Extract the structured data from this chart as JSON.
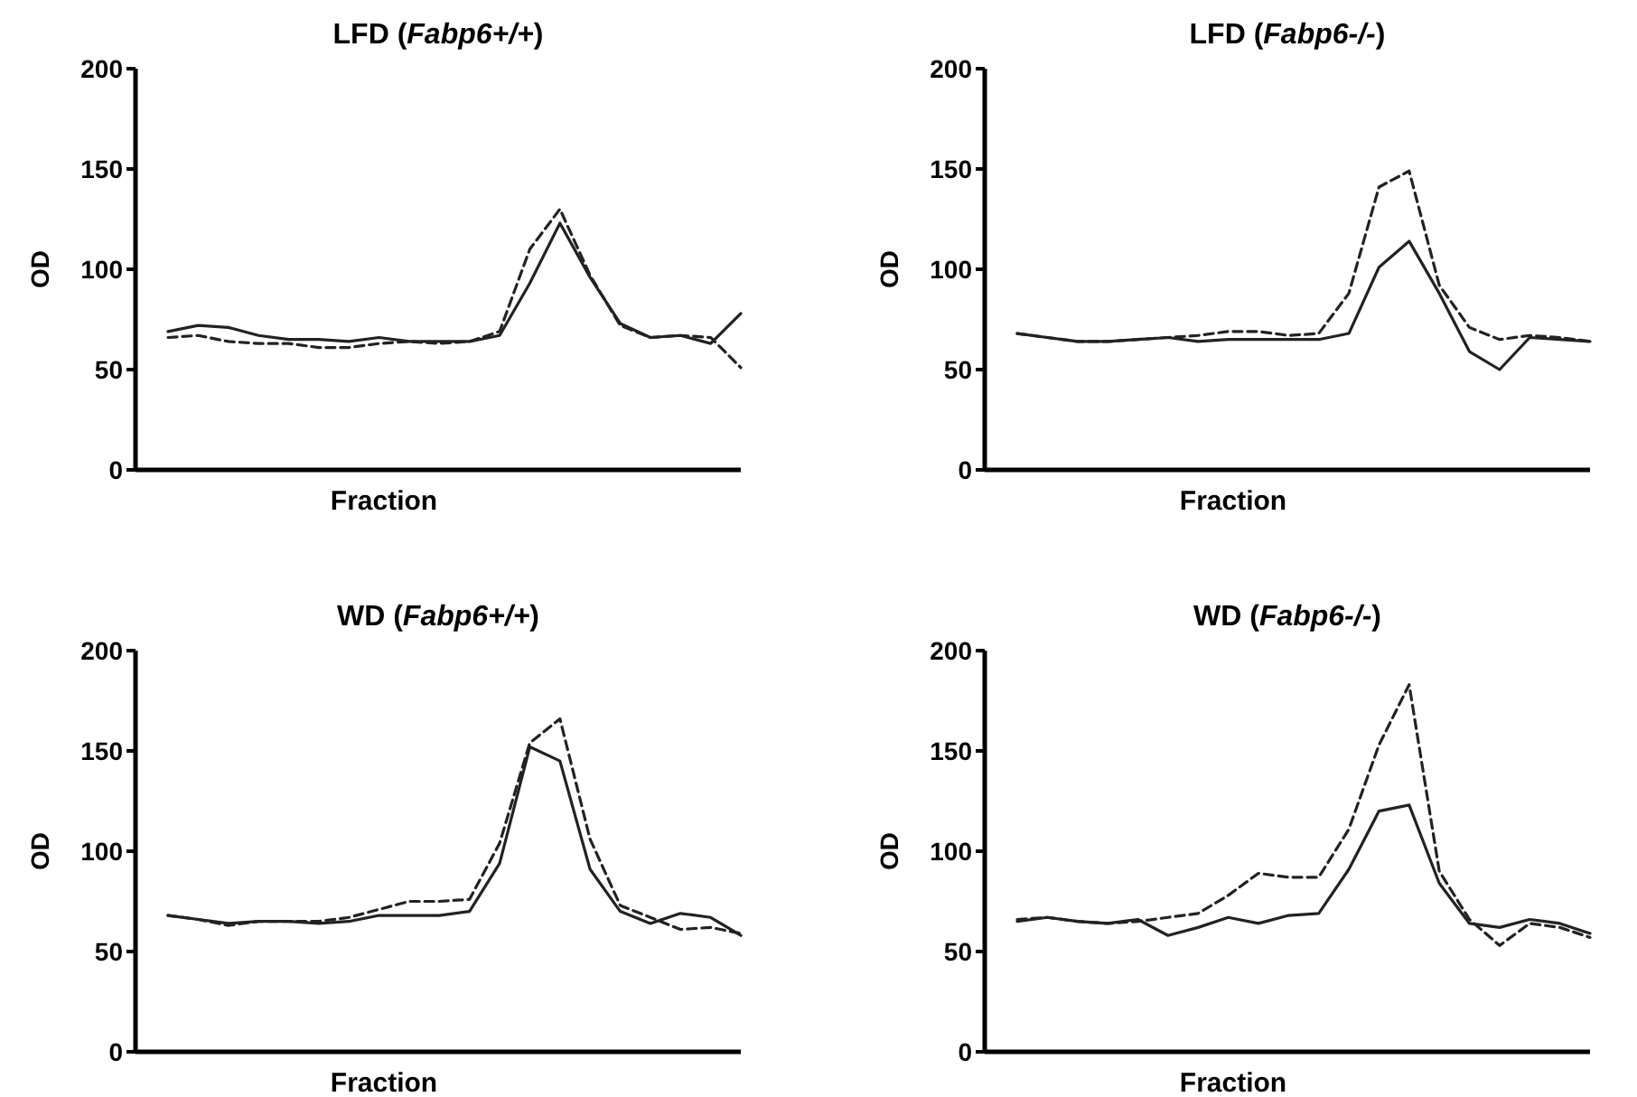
{
  "chart_data": [
    {
      "type": "line",
      "title": "LFD (Fabp6+/+)",
      "xlabel": "Fraction",
      "ylabel": "OD",
      "categories": [
        null,
        null,
        null,
        null,
        null,
        null,
        null,
        null,
        null,
        null,
        null,
        null,
        null,
        null,
        null,
        null,
        null,
        null,
        null,
        null
      ],
      "ylim": [
        0,
        200
      ],
      "yticks": [
        0,
        50,
        100,
        150,
        200
      ],
      "tick_labels": "y",
      "marker": "none",
      "series": [
        {
          "color": "#222222",
          "line_style": "solid",
          "values": [
            69,
            72,
            71,
            67,
            65,
            65,
            64,
            66,
            64,
            64,
            64,
            67,
            93,
            123,
            96,
            73,
            66,
            67,
            63,
            78
          ]
        },
        {
          "color": "#222222",
          "line_style": "dashed",
          "values": [
            66,
            67,
            64,
            63,
            63,
            61,
            61,
            63,
            64,
            63,
            64,
            69,
            110,
            130,
            97,
            72,
            66,
            67,
            66,
            51
          ]
        }
      ]
    },
    {
      "type": "line",
      "title": "LFD (Fabp6-/-)",
      "xlabel": "Fraction",
      "ylabel": "OD",
      "categories": [
        null,
        null,
        null,
        null,
        null,
        null,
        null,
        null,
        null,
        null,
        null,
        null,
        null,
        null,
        null,
        null,
        null,
        null,
        null,
        null
      ],
      "ylim": [
        0,
        200
      ],
      "yticks": [
        0,
        50,
        100,
        150,
        200
      ],
      "tick_labels": "y",
      "marker": "none",
      "series": [
        {
          "color": "#222222",
          "line_style": "solid",
          "values": [
            68,
            66,
            64,
            64,
            65,
            66,
            64,
            65,
            65,
            65,
            65,
            68,
            101,
            114,
            88,
            59,
            50,
            66,
            65,
            64
          ]
        },
        {
          "color": "#222222",
          "line_style": "dashed",
          "values": [
            68,
            66,
            64,
            64,
            65,
            66,
            67,
            69,
            69,
            67,
            68,
            88,
            141,
            149,
            92,
            71,
            65,
            67,
            66,
            64
          ]
        }
      ]
    },
    {
      "type": "line",
      "title": "WD (Fabp6+/+)",
      "xlabel": "Fraction",
      "ylabel": "OD",
      "categories": [
        null,
        null,
        null,
        null,
        null,
        null,
        null,
        null,
        null,
        null,
        null,
        null,
        null,
        null,
        null,
        null,
        null,
        null,
        null,
        null
      ],
      "ylim": [
        0,
        200
      ],
      "yticks": [
        0,
        50,
        100,
        150,
        200
      ],
      "tick_labels": "y",
      "marker": "none",
      "series": [
        {
          "color": "#222222",
          "line_style": "solid",
          "values": [
            68,
            66,
            64,
            65,
            65,
            64,
            65,
            68,
            68,
            68,
            70,
            94,
            152,
            145,
            91,
            70,
            64,
            69,
            67,
            58
          ]
        },
        {
          "color": "#222222",
          "line_style": "dashed",
          "values": [
            68,
            66,
            63,
            65,
            65,
            65,
            67,
            71,
            75,
            75,
            76,
            104,
            154,
            166,
            106,
            73,
            67,
            61,
            62,
            59
          ]
        }
      ]
    },
    {
      "type": "line",
      "title": "WD (Fabp6-/-)",
      "xlabel": "Fraction",
      "ylabel": "OD",
      "categories": [
        null,
        null,
        null,
        null,
        null,
        null,
        null,
        null,
        null,
        null,
        null,
        null,
        null,
        null,
        null,
        null,
        null,
        null,
        null,
        null
      ],
      "ylim": [
        0,
        200
      ],
      "yticks": [
        0,
        50,
        100,
        150,
        200
      ],
      "tick_labels": "y",
      "marker": "none",
      "series": [
        {
          "color": "#222222",
          "line_style": "solid",
          "values": [
            65,
            67,
            65,
            64,
            66,
            58,
            62,
            67,
            64,
            68,
            69,
            91,
            120,
            123,
            84,
            64,
            62,
            66,
            64,
            59
          ]
        },
        {
          "color": "#222222",
          "line_style": "dashed",
          "values": [
            66,
            67,
            65,
            64,
            65,
            67,
            69,
            78,
            89,
            87,
            87,
            111,
            153,
            183,
            90,
            66,
            53,
            64,
            62,
            57
          ]
        }
      ]
    }
  ]
}
